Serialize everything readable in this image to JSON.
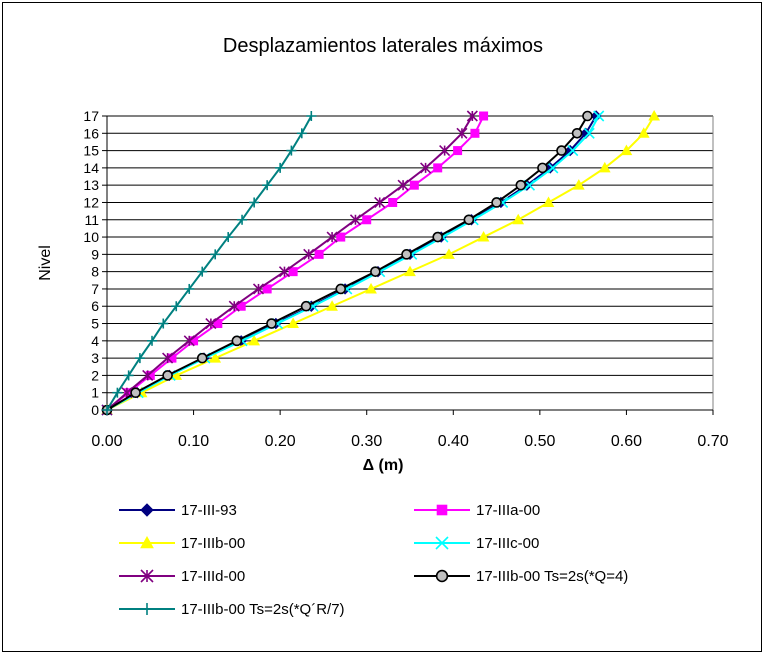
{
  "chart_data": {
    "type": "line",
    "title": "Desplazamientos laterales máximos",
    "xlabel": "Δ (m)",
    "ylabel": "Nivel",
    "xlim": [
      0,
      0.7
    ],
    "ylim": [
      0,
      17
    ],
    "x_ticks": [
      "0.00",
      "0.10",
      "0.20",
      "0.30",
      "0.40",
      "0.50",
      "0.60",
      "0.70"
    ],
    "y_ticks": [
      "0",
      "1",
      "2",
      "3",
      "4",
      "5",
      "6",
      "7",
      "8",
      "9",
      "10",
      "11",
      "12",
      "13",
      "14",
      "15",
      "16",
      "17"
    ],
    "y": [
      0,
      1,
      2,
      3,
      4,
      5,
      6,
      7,
      8,
      9,
      10,
      11,
      12,
      13,
      14,
      15,
      16,
      17
    ],
    "grid": "horizontal",
    "legend_position": "bottom",
    "series": [
      {
        "name": "17-III-93",
        "color": "#000080",
        "marker": "diamond",
        "x": [
          0,
          0.035,
          0.072,
          0.112,
          0.155,
          0.195,
          0.236,
          0.275,
          0.313,
          0.35,
          0.386,
          0.421,
          0.455,
          0.485,
          0.512,
          0.535,
          0.553,
          0.565
        ]
      },
      {
        "name": "17-IIIa-00",
        "color": "#ff00ff",
        "marker": "square",
        "x": [
          0,
          0.025,
          0.05,
          0.075,
          0.1,
          0.128,
          0.155,
          0.185,
          0.215,
          0.245,
          0.27,
          0.3,
          0.33,
          0.355,
          0.382,
          0.405,
          0.425,
          0.435
        ]
      },
      {
        "name": "17-IIIb-00",
        "color": "#ffff00",
        "marker": "triangle",
        "x": [
          0,
          0.04,
          0.08,
          0.125,
          0.17,
          0.215,
          0.26,
          0.305,
          0.35,
          0.395,
          0.435,
          0.475,
          0.51,
          0.545,
          0.575,
          0.6,
          0.62,
          0.632
        ]
      },
      {
        "name": "17-IIIc-00",
        "color": "#00ffff",
        "marker": "x",
        "x": [
          0,
          0.036,
          0.073,
          0.113,
          0.156,
          0.197,
          0.238,
          0.277,
          0.315,
          0.352,
          0.388,
          0.423,
          0.457,
          0.488,
          0.515,
          0.538,
          0.557,
          0.568
        ]
      },
      {
        "name": "17-IIId-00",
        "color": "#800080",
        "marker": "star",
        "x": [
          0,
          0.023,
          0.047,
          0.07,
          0.095,
          0.12,
          0.147,
          0.175,
          0.205,
          0.233,
          0.26,
          0.287,
          0.315,
          0.342,
          0.368,
          0.39,
          0.41,
          0.422
        ]
      },
      {
        "name": "17-IIIb-00 Ts=2s(*Q=4)",
        "color": "#000000",
        "marker": "circle",
        "x": [
          0,
          0.033,
          0.07,
          0.11,
          0.15,
          0.19,
          0.23,
          0.27,
          0.31,
          0.346,
          0.382,
          0.418,
          0.45,
          0.478,
          0.503,
          0.525,
          0.543,
          0.555
        ]
      },
      {
        "name": "17-IIIb-00 Ts=2s(*Q´R/7)",
        "color": "#008080",
        "marker": "plus",
        "x": [
          0,
          0.012,
          0.025,
          0.038,
          0.052,
          0.065,
          0.08,
          0.095,
          0.11,
          0.125,
          0.14,
          0.156,
          0.17,
          0.185,
          0.2,
          0.213,
          0.225,
          0.236
        ]
      }
    ]
  }
}
